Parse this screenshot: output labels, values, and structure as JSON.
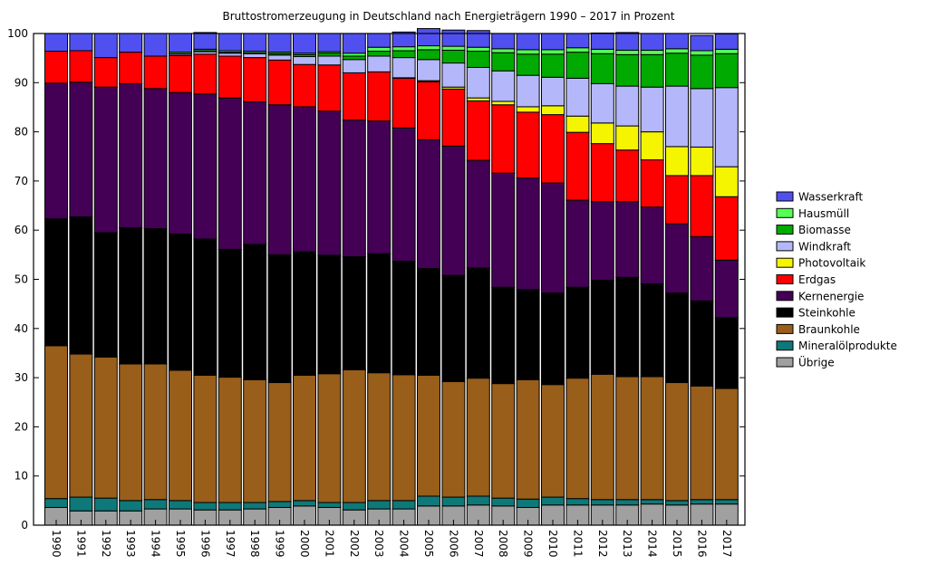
{
  "chart_data": {
    "type": "bar",
    "stacked": true,
    "title": "Bruttostromerzeugung in Deutschland nach Energieträgern 1990 – 2017 in Prozent",
    "xlabel": "",
    "ylabel": "",
    "ylim": [
      0,
      100
    ],
    "yticks": [
      "0",
      "10",
      "20",
      "30",
      "40",
      "50",
      "60",
      "70",
      "80",
      "90",
      "100"
    ],
    "legend_position": "right",
    "categories": [
      "1990",
      "1991",
      "1992",
      "1993",
      "1994",
      "1995",
      "1996",
      "1997",
      "1998",
      "1999",
      "2000",
      "2001",
      "2002",
      "2003",
      "2004",
      "2005",
      "2006",
      "2007",
      "2008",
      "2009",
      "2010",
      "2011",
      "2012",
      "2013",
      "2014",
      "2015",
      "2016",
      "2017"
    ],
    "series": [
      {
        "name": "Übrige",
        "color": "#a0a0a0",
        "values": [
          3.6,
          2.9,
          2.9,
          2.9,
          3.3,
          3.3,
          3.1,
          3.1,
          3.3,
          3.6,
          3.9,
          3.6,
          3.1,
          3.3,
          3.3,
          3.9,
          3.9,
          4.1,
          3.9,
          3.6,
          4.1,
          4.1,
          4.1,
          4.1,
          4.3,
          4.1,
          4.3,
          4.3
        ]
      },
      {
        "name": "Mineralölprodukte",
        "color": "#0f7878",
        "values": [
          1.8,
          2.8,
          2.6,
          2.1,
          1.9,
          1.7,
          1.5,
          1.5,
          1.3,
          1.2,
          1.1,
          1.0,
          1.5,
          1.7,
          1.7,
          2.0,
          1.8,
          1.8,
          1.6,
          1.7,
          1.6,
          1.3,
          1.1,
          1.1,
          0.9,
          0.9,
          0.9,
          0.9
        ]
      },
      {
        "name": "Braunkohle",
        "color": "#985e1a",
        "values": [
          31.1,
          29.1,
          28.7,
          27.8,
          27.6,
          26.5,
          25.9,
          25.5,
          25.0,
          24.2,
          25.5,
          26.2,
          27.0,
          26.0,
          25.6,
          24.6,
          23.5,
          24.0,
          23.3,
          24.3,
          22.9,
          24.5,
          25.5,
          25.0,
          25.0,
          24.0,
          23.1,
          22.6
        ]
      },
      {
        "name": "Steinkohle",
        "color": "#000000",
        "values": [
          25.8,
          27.9,
          25.3,
          27.7,
          27.5,
          27.7,
          27.7,
          26.0,
          27.5,
          26.0,
          25.1,
          24.1,
          23.0,
          24.2,
          23.1,
          21.7,
          21.6,
          22.4,
          19.6,
          18.3,
          18.6,
          18.5,
          19.1,
          20.2,
          18.9,
          18.2,
          17.3,
          14.4
        ]
      },
      {
        "name": "Kernenergie",
        "color": "#440055",
        "values": [
          27.6,
          27.4,
          29.6,
          29.3,
          28.5,
          28.8,
          29.5,
          30.8,
          29.0,
          30.5,
          29.5,
          29.3,
          27.8,
          27.0,
          27.1,
          26.2,
          26.3,
          21.9,
          23.2,
          22.7,
          22.4,
          17.7,
          16.0,
          15.4,
          15.6,
          14.1,
          13.1,
          11.7
        ]
      },
      {
        "name": "Erdgas",
        "color": "#ff0000",
        "values": [
          6.5,
          6.4,
          6.0,
          6.4,
          6.6,
          7.5,
          8.1,
          8.5,
          9.0,
          9.1,
          8.6,
          9.4,
          9.6,
          10.0,
          10.1,
          11.8,
          11.6,
          12.1,
          13.9,
          13.4,
          13.9,
          13.8,
          11.8,
          10.5,
          9.6,
          9.8,
          12.4,
          12.9
        ]
      },
      {
        "name": "Photovoltaik",
        "color": "#f5f500",
        "values": [
          0,
          0,
          0,
          0,
          0,
          0,
          0,
          0,
          0,
          0,
          0,
          0,
          0,
          0,
          0.1,
          0.2,
          0.4,
          0.6,
          0.7,
          1.1,
          1.8,
          3.3,
          4.2,
          4.9,
          5.7,
          5.9,
          5.8,
          6.1
        ]
      },
      {
        "name": "Windkraft",
        "color": "#b4b8fa",
        "values": [
          0,
          0,
          0,
          0,
          0,
          0.3,
          0.5,
          0.6,
          0.8,
          1.0,
          1.6,
          1.8,
          2.7,
          3.2,
          4.1,
          4.3,
          4.9,
          6.2,
          6.2,
          6.4,
          5.8,
          7.7,
          8.0,
          8.1,
          9.1,
          12.3,
          11.9,
          16.1
        ]
      },
      {
        "name": "Biomasse",
        "color": "#00aa00",
        "values": [
          0,
          0,
          0,
          0,
          0,
          0.1,
          0.2,
          0.2,
          0.2,
          0.3,
          0.4,
          0.6,
          0.7,
          1.0,
          1.4,
          2.0,
          2.6,
          3.3,
          3.7,
          4.3,
          4.7,
          5.3,
          6.1,
          6.4,
          6.6,
          6.7,
          6.8,
          6.9
        ]
      },
      {
        "name": "Hausmüll",
        "color": "#55ff55",
        "values": [
          0,
          0,
          0,
          0,
          0,
          0.3,
          0.3,
          0.3,
          0.3,
          0.3,
          0.3,
          0.3,
          0.6,
          0.8,
          0.8,
          0.8,
          0.8,
          0.8,
          0.8,
          0.9,
          0.9,
          0.9,
          0.9,
          0.9,
          0.9,
          0.9,
          0.9,
          0.9
        ]
      },
      {
        "name": "Wasserkraft",
        "color": "#5050f0",
        "values": [
          3.6,
          3.5,
          4.9,
          3.8,
          4.6,
          3.8,
          3.4,
          3.5,
          3.6,
          3.8,
          4.0,
          3.7,
          4.0,
          2.8,
          3.0,
          3.5,
          3.3,
          3.4,
          3.1,
          3.3,
          3.3,
          2.9,
          3.3,
          3.6,
          3.4,
          3.1,
          3.1,
          3.1
        ]
      }
    ]
  }
}
